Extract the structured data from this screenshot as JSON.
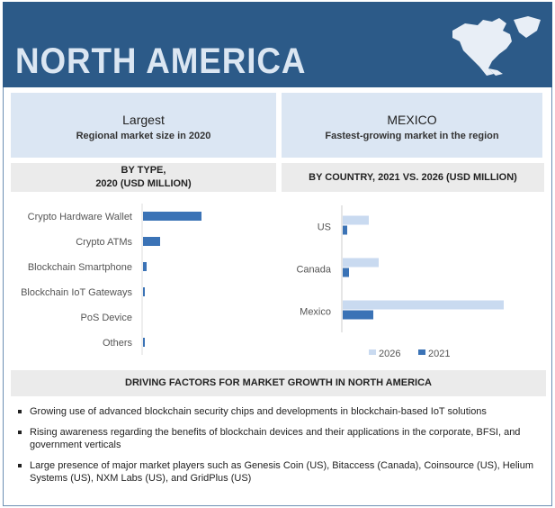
{
  "header": {
    "title": "NORTH AMERICA",
    "map_icon": "north-america-map-icon"
  },
  "highlights": [
    {
      "title": "Largest",
      "subtitle": "Regional market size in 2020"
    },
    {
      "title": "MEXICO",
      "subtitle": "Fastest-growing market in the region"
    }
  ],
  "chart_data": [
    {
      "type": "bar",
      "orientation": "horizontal",
      "title_line1": "BY TYPE,",
      "title_line2": "2020 (USD MILLION)",
      "categories": [
        "Crypto Hardware Wallet",
        "Crypto ATMs",
        "Blockchain Smartphone",
        "Blockchain IoT Gateways",
        "PoS Device",
        "Others"
      ],
      "values": [
        65,
        19,
        4,
        2,
        0,
        2
      ],
      "color": "#3b73b6",
      "grid": false
    },
    {
      "type": "bar",
      "orientation": "horizontal",
      "title": "BY COUNTRY, 2021 VS. 2026 (USD MILLION)",
      "categories": [
        "US",
        "Canada",
        "Mexico"
      ],
      "series": [
        {
          "name": "2026",
          "values": [
            29,
            40,
            179
          ],
          "color": "#c9daf0"
        },
        {
          "name": "2021",
          "values": [
            5,
            7,
            34
          ],
          "color": "#3b73b6"
        }
      ],
      "legend": "bottom",
      "grid": false
    }
  ],
  "drivers": {
    "title": "DRIVING FACTORS  FOR MARKET GROWTH IN NORTH AMERICA",
    "items": [
      "Growing use of advanced blockchain security chips and developments in blockchain-based IoT solutions",
      "Rising awareness regarding the benefits of blockchain devices and their applications in the corporate, BFSI, and government verticals",
      "Large presence of major market players such as Genesis Coin (US), Bitaccess (Canada), Coinsource (US), Helium Systems (US), NXM Labs (US), and GridPlus (US)"
    ]
  }
}
